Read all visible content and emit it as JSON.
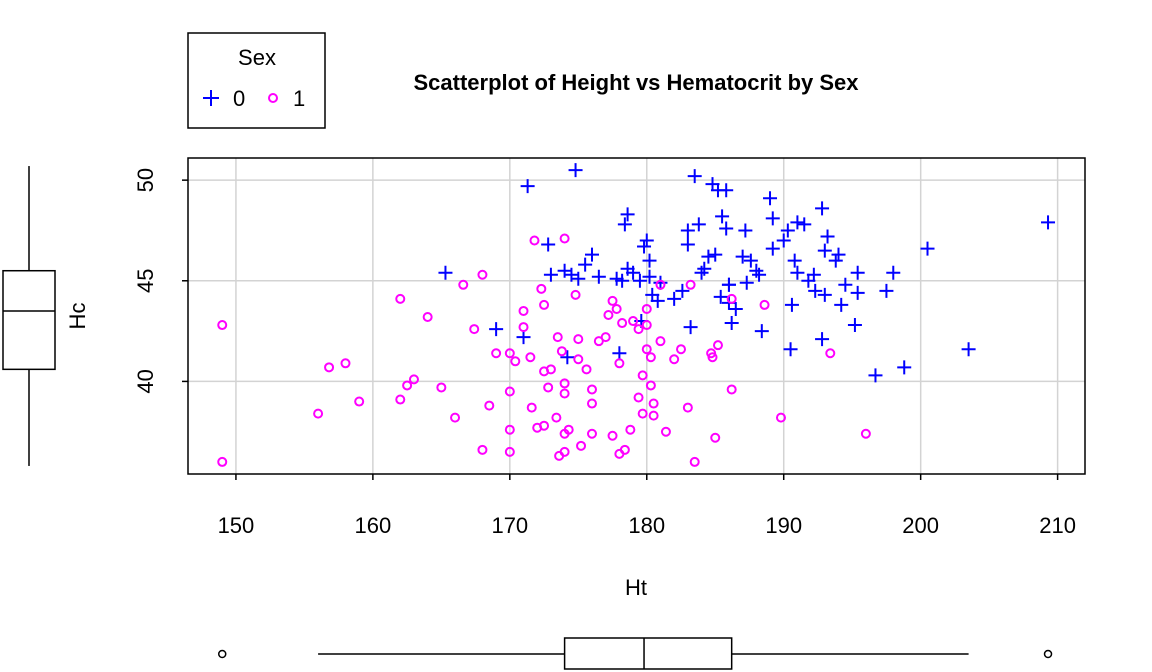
{
  "chart_data": {
    "type": "scatter",
    "title": "Scatterplot of Height vs Hematocrit by Sex",
    "xlabel": "Ht",
    "ylabel": "Hc",
    "xlim": [
      146.5,
      212
    ],
    "ylim": [
      35.4,
      51.1
    ],
    "xticks": [
      150,
      160,
      170,
      180,
      190,
      200,
      210
    ],
    "yticks": [
      40,
      45,
      50
    ],
    "grid": true,
    "legend": {
      "title": "Sex",
      "position": "top-left, outside plot"
    },
    "series": [
      {
        "name": "0",
        "color": "#0000ff",
        "marker": "plus",
        "points": [
          [
            165.3,
            45.4
          ],
          [
            169.0,
            42.6
          ],
          [
            171.0,
            42.2
          ],
          [
            171.3,
            49.7
          ],
          [
            172.8,
            46.8
          ],
          [
            173.0,
            45.3
          ],
          [
            174.0,
            45.5
          ],
          [
            174.2,
            41.2
          ],
          [
            174.5,
            45.3
          ],
          [
            174.8,
            50.5
          ],
          [
            175.0,
            45.1
          ],
          [
            175.5,
            45.8
          ],
          [
            176.0,
            46.3
          ],
          [
            176.5,
            45.2
          ],
          [
            177.8,
            45.1
          ],
          [
            178.0,
            41.4
          ],
          [
            178.2,
            45.0
          ],
          [
            178.4,
            47.8
          ],
          [
            178.6,
            48.3
          ],
          [
            178.6,
            45.6
          ],
          [
            179.0,
            45.4
          ],
          [
            179.5,
            45.0
          ],
          [
            179.6,
            43.0
          ],
          [
            179.8,
            46.7
          ],
          [
            180.0,
            47.0
          ],
          [
            180.2,
            46.0
          ],
          [
            180.2,
            45.2
          ],
          [
            180.4,
            44.3
          ],
          [
            180.8,
            44.0
          ],
          [
            181.0,
            44.9
          ],
          [
            182.0,
            44.1
          ],
          [
            182.6,
            44.5
          ],
          [
            183.0,
            47.5
          ],
          [
            183.0,
            46.8
          ],
          [
            183.2,
            42.7
          ],
          [
            183.5,
            50.2
          ],
          [
            183.8,
            47.8
          ],
          [
            184.0,
            45.4
          ],
          [
            184.2,
            45.6
          ],
          [
            184.5,
            46.2
          ],
          [
            184.8,
            49.8
          ],
          [
            185.0,
            46.3
          ],
          [
            185.2,
            49.5
          ],
          [
            185.4,
            44.2
          ],
          [
            185.5,
            48.2
          ],
          [
            185.8,
            47.6
          ],
          [
            185.8,
            49.5
          ],
          [
            186.0,
            44.8
          ],
          [
            186.0,
            44.8
          ],
          [
            186.0,
            43.9
          ],
          [
            186.2,
            42.9
          ],
          [
            186.5,
            43.6
          ],
          [
            187.0,
            46.2
          ],
          [
            187.2,
            47.5
          ],
          [
            187.3,
            44.9
          ],
          [
            187.6,
            46.0
          ],
          [
            188.0,
            45.5
          ],
          [
            188.2,
            45.3
          ],
          [
            188.4,
            42.5
          ],
          [
            189.0,
            49.1
          ],
          [
            189.2,
            46.6
          ],
          [
            189.2,
            48.1
          ],
          [
            190.0,
            47.0
          ],
          [
            190.3,
            47.5
          ],
          [
            190.5,
            41.6
          ],
          [
            190.6,
            43.8
          ],
          [
            190.8,
            46.0
          ],
          [
            191.0,
            47.9
          ],
          [
            191.0,
            45.4
          ],
          [
            191.5,
            47.8
          ],
          [
            191.8,
            45.0
          ],
          [
            192.2,
            45.3
          ],
          [
            192.3,
            44.5
          ],
          [
            192.8,
            48.6
          ],
          [
            192.8,
            42.1
          ],
          [
            193.0,
            46.5
          ],
          [
            193.0,
            44.3
          ],
          [
            193.2,
            47.2
          ],
          [
            193.8,
            46.0
          ],
          [
            194.0,
            46.3
          ],
          [
            194.2,
            43.8
          ],
          [
            194.5,
            44.8
          ],
          [
            195.2,
            42.8
          ],
          [
            195.4,
            45.4
          ],
          [
            195.4,
            44.4
          ],
          [
            196.7,
            40.3
          ],
          [
            197.5,
            44.5
          ],
          [
            198.0,
            45.4
          ],
          [
            198.8,
            40.7
          ],
          [
            200.5,
            46.6
          ],
          [
            203.5,
            41.6
          ],
          [
            209.3,
            47.9
          ]
        ]
      },
      {
        "name": "1",
        "color": "#ff00ff",
        "marker": "circle",
        "points": [
          [
            149.0,
            42.8
          ],
          [
            149.0,
            36.0
          ],
          [
            156.0,
            38.4
          ],
          [
            156.8,
            40.7
          ],
          [
            158.0,
            40.9
          ],
          [
            159.0,
            39.0
          ],
          [
            162.0,
            44.1
          ],
          [
            162.0,
            39.1
          ],
          [
            162.5,
            39.8
          ],
          [
            163.0,
            40.1
          ],
          [
            164.0,
            43.2
          ],
          [
            165.0,
            39.7
          ],
          [
            166.0,
            38.2
          ],
          [
            166.6,
            44.8
          ],
          [
            167.4,
            42.6
          ],
          [
            168.0,
            45.3
          ],
          [
            168.0,
            36.6
          ],
          [
            168.5,
            38.8
          ],
          [
            169.0,
            41.4
          ],
          [
            170.0,
            41.4
          ],
          [
            170.0,
            37.6
          ],
          [
            170.0,
            36.5
          ],
          [
            170.0,
            39.5
          ],
          [
            170.4,
            41.0
          ],
          [
            171.0,
            43.5
          ],
          [
            171.0,
            42.7
          ],
          [
            171.5,
            41.2
          ],
          [
            171.6,
            38.7
          ],
          [
            171.8,
            47.0
          ],
          [
            172.0,
            37.7
          ],
          [
            172.3,
            44.6
          ],
          [
            172.5,
            43.8
          ],
          [
            172.5,
            40.5
          ],
          [
            172.5,
            37.8
          ],
          [
            172.8,
            39.7
          ],
          [
            173.0,
            40.6
          ],
          [
            173.4,
            38.2
          ],
          [
            173.5,
            42.2
          ],
          [
            173.6,
            36.3
          ],
          [
            173.8,
            41.5
          ],
          [
            174.0,
            39.9
          ],
          [
            174.0,
            37.4
          ],
          [
            174.0,
            36.5
          ],
          [
            174.0,
            47.1
          ],
          [
            174.0,
            39.4
          ],
          [
            174.3,
            37.6
          ],
          [
            174.8,
            44.3
          ],
          [
            175.0,
            42.1
          ],
          [
            175.0,
            41.1
          ],
          [
            175.2,
            36.8
          ],
          [
            175.6,
            40.6
          ],
          [
            176.0,
            38.9
          ],
          [
            176.0,
            39.6
          ],
          [
            176.0,
            37.4
          ],
          [
            176.5,
            42.0
          ],
          [
            177.0,
            42.2
          ],
          [
            177.2,
            43.3
          ],
          [
            177.5,
            44.0
          ],
          [
            177.5,
            37.3
          ],
          [
            177.8,
            43.6
          ],
          [
            178.0,
            40.9
          ],
          [
            178.0,
            36.4
          ],
          [
            178.2,
            42.9
          ],
          [
            178.4,
            36.6
          ],
          [
            178.8,
            37.6
          ],
          [
            179.0,
            43.0
          ],
          [
            179.4,
            42.6
          ],
          [
            179.4,
            39.2
          ],
          [
            179.7,
            40.3
          ],
          [
            179.7,
            38.4
          ],
          [
            180.0,
            42.8
          ],
          [
            180.0,
            43.6
          ],
          [
            180.0,
            41.6
          ],
          [
            180.3,
            41.2
          ],
          [
            180.3,
            39.8
          ],
          [
            180.5,
            38.9
          ],
          [
            180.5,
            38.3
          ],
          [
            181.0,
            44.8
          ],
          [
            181.0,
            42.0
          ],
          [
            181.4,
            37.5
          ],
          [
            182.0,
            41.1
          ],
          [
            182.5,
            41.6
          ],
          [
            183.0,
            38.7
          ],
          [
            183.2,
            44.8
          ],
          [
            183.5,
            36.0
          ],
          [
            184.7,
            41.4
          ],
          [
            184.8,
            41.2
          ],
          [
            185.0,
            37.2
          ],
          [
            185.2,
            41.8
          ],
          [
            186.2,
            44.1
          ],
          [
            186.2,
            39.6
          ],
          [
            188.6,
            43.8
          ],
          [
            189.8,
            38.2
          ],
          [
            193.4,
            41.4
          ],
          [
            196.0,
            37.4
          ]
        ]
      }
    ],
    "marginal_boxplots": {
      "y": {
        "min": 35.8,
        "q1": 40.6,
        "median": 43.5,
        "q3": 45.5,
        "max": 50.7,
        "outliers": []
      },
      "x": {
        "min": 156,
        "q1": 174,
        "median": 179.8,
        "q3": 186.2,
        "max": 203.5,
        "outliers": [
          149,
          209.3
        ]
      }
    }
  }
}
